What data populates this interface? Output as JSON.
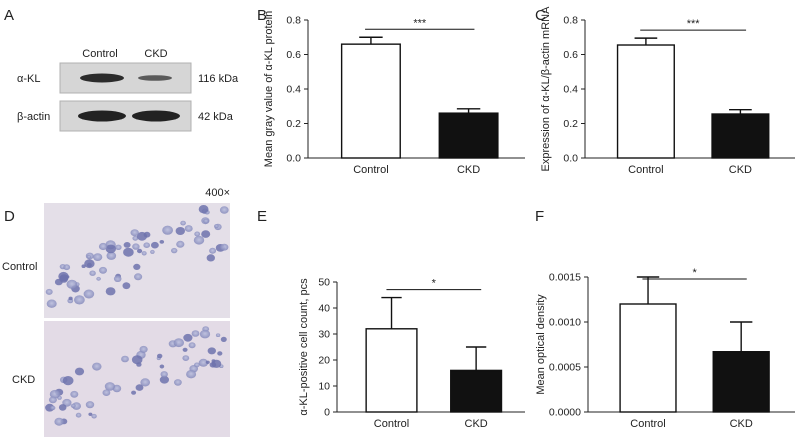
{
  "panels": {
    "A": {
      "letter": "A",
      "lanes": [
        "Control",
        "CKD"
      ],
      "rows": [
        {
          "label": "α-KL",
          "size": "116 kDa"
        },
        {
          "label": "β-actin",
          "size": "42 kDa"
        }
      ]
    },
    "D": {
      "letter": "D",
      "magnification": "400×",
      "rows": [
        "Control",
        "CKD"
      ]
    }
  },
  "colors": {
    "control_fill": "#ffffff",
    "ckd_fill": "#111111",
    "axis": "#222222"
  },
  "chart_data": [
    {
      "panel": "B",
      "type": "bar",
      "categories": [
        "Control",
        "CKD"
      ],
      "values": [
        0.66,
        0.26
      ],
      "errors": [
        0.04,
        0.025
      ],
      "ylabel": "Mean gray value of α-KL protein",
      "ylim": [
        0,
        0.8
      ],
      "yticks": [
        "0.0",
        "0.2",
        "0.4",
        "0.6",
        "0.8"
      ],
      "significance": "***"
    },
    {
      "panel": "C",
      "type": "bar",
      "categories": [
        "Control",
        "CKD"
      ],
      "values": [
        0.655,
        0.255
      ],
      "errors": [
        0.04,
        0.025
      ],
      "ylabel": "Expression of α-KL/β-actin mRNA",
      "ylim": [
        0,
        0.8
      ],
      "yticks": [
        "0.0",
        "0.2",
        "0.4",
        "0.6",
        "0.8"
      ],
      "significance": "***"
    },
    {
      "panel": "E",
      "type": "bar",
      "categories": [
        "Control",
        "CKD"
      ],
      "values": [
        32,
        16
      ],
      "errors": [
        12,
        9
      ],
      "ylabel": "α-KL-positive cell count, pcs",
      "ylim": [
        0,
        50
      ],
      "yticks": [
        "0",
        "10",
        "20",
        "30",
        "40",
        "50"
      ],
      "significance": "*"
    },
    {
      "panel": "F",
      "type": "bar",
      "categories": [
        "Control",
        "CKD"
      ],
      "values": [
        0.0012,
        0.00067
      ],
      "errors": [
        0.0003,
        0.00033
      ],
      "ylabel": "Mean optical density",
      "ylim": [
        0,
        0.0015
      ],
      "yticks": [
        "0.0000",
        "0.0005",
        "0.0010",
        "0.0015"
      ],
      "significance": "*"
    }
  ]
}
